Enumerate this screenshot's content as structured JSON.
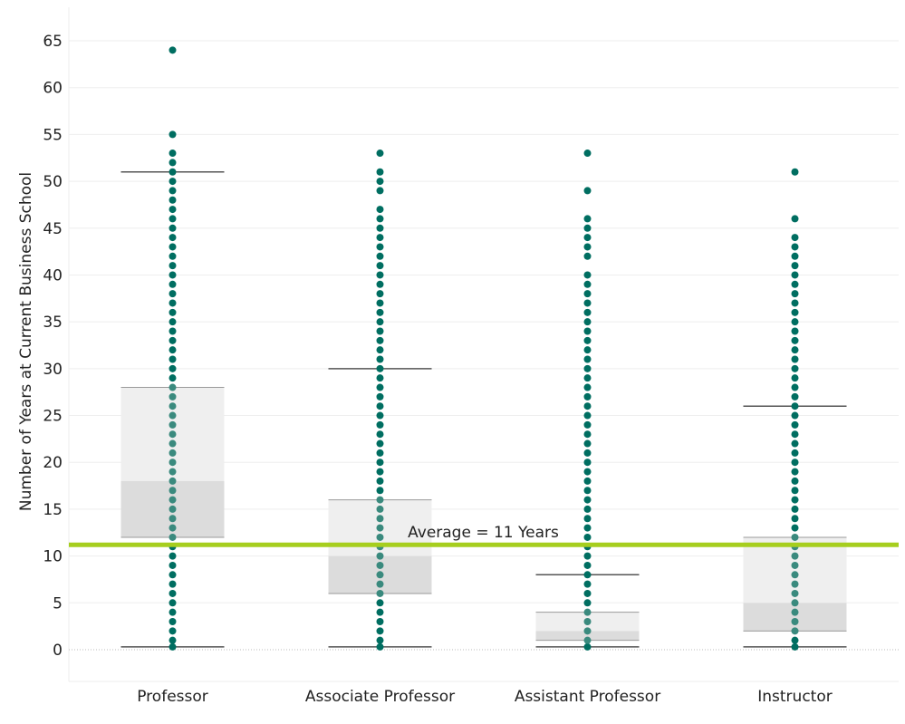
{
  "chart_data": {
    "type": "scatter",
    "subtype": "box-and-whisker with jittered-free dot strip",
    "ylabel": "Number of Years at Current Business School",
    "xlabel": "",
    "ylim": [
      -3,
      68
    ],
    "yticks": [
      0,
      5,
      10,
      15,
      20,
      25,
      30,
      35,
      40,
      45,
      50,
      55,
      60,
      65
    ],
    "grid": true,
    "categories": [
      "Professor",
      "Associate Professor",
      "Assistant Professor",
      "Instructor"
    ],
    "boxes": [
      {
        "category": "Professor",
        "whisker_low": 0.3,
        "q1": 12,
        "median": 18,
        "q3": 28,
        "whisker_high": 51
      },
      {
        "category": "Associate Professor",
        "whisker_low": 0.3,
        "q1": 6,
        "median": 10,
        "q3": 16,
        "whisker_high": 30
      },
      {
        "category": "Assistant Professor",
        "whisker_low": 0.3,
        "q1": 1,
        "median": 2,
        "q3": 4,
        "whisker_high": 8
      },
      {
        "category": "Instructor",
        "whisker_low": 0.3,
        "q1": 2,
        "median": 5,
        "q3": 12,
        "whisker_high": 26
      }
    ],
    "points": [
      {
        "category": "Professor",
        "values": [
          0.3,
          1,
          2,
          3,
          4,
          5,
          6,
          7,
          8,
          9,
          10,
          11,
          12,
          13,
          14,
          15,
          16,
          17,
          18,
          19,
          20,
          21,
          22,
          23,
          24,
          25,
          26,
          27,
          28,
          29,
          30,
          31,
          32,
          33,
          34,
          35,
          36,
          37,
          38,
          39,
          40,
          41,
          42,
          43,
          44,
          45,
          46,
          47,
          48,
          49,
          50,
          51,
          52,
          53,
          55,
          64
        ]
      },
      {
        "category": "Associate Professor",
        "values": [
          0.3,
          1,
          2,
          3,
          4,
          5,
          6,
          7,
          8,
          9,
          10,
          11,
          12,
          13,
          14,
          15,
          16,
          17,
          18,
          19,
          20,
          21,
          22,
          23,
          24,
          25,
          26,
          27,
          28,
          29,
          30,
          31,
          32,
          33,
          34,
          35,
          36,
          37,
          38,
          39,
          40,
          41,
          42,
          43,
          44,
          45,
          46,
          47,
          49,
          50,
          51,
          53
        ]
      },
      {
        "category": "Assistant Professor",
        "values": [
          0.3,
          1,
          2,
          3,
          4,
          5,
          6,
          7,
          8,
          9,
          10,
          11,
          12,
          13,
          14,
          15,
          16,
          17,
          18,
          19,
          20,
          21,
          22,
          23,
          24,
          25,
          26,
          27,
          28,
          29,
          30,
          31,
          32,
          33,
          34,
          35,
          36,
          37,
          38,
          39,
          40,
          42,
          43,
          44,
          45,
          46,
          49,
          53
        ]
      },
      {
        "category": "Instructor",
        "values": [
          0.3,
          1,
          2,
          3,
          4,
          5,
          6,
          7,
          8,
          9,
          10,
          11,
          12,
          13,
          14,
          15,
          16,
          17,
          18,
          19,
          20,
          21,
          22,
          23,
          24,
          25,
          26,
          27,
          28,
          29,
          30,
          31,
          32,
          33,
          34,
          35,
          36,
          37,
          38,
          39,
          40,
          41,
          42,
          43,
          44,
          46,
          51
        ]
      }
    ],
    "reference_line": {
      "value": 11.2,
      "label": "Average = 11 Years",
      "color": "#a6ce1e"
    },
    "colors": {
      "point": "#006e61",
      "point_in_box": "#3a8a7e",
      "box_upper": "#efefef",
      "box_lower": "#dcdcdc",
      "whisker": "#555555",
      "grid": "#eeeeee"
    }
  }
}
